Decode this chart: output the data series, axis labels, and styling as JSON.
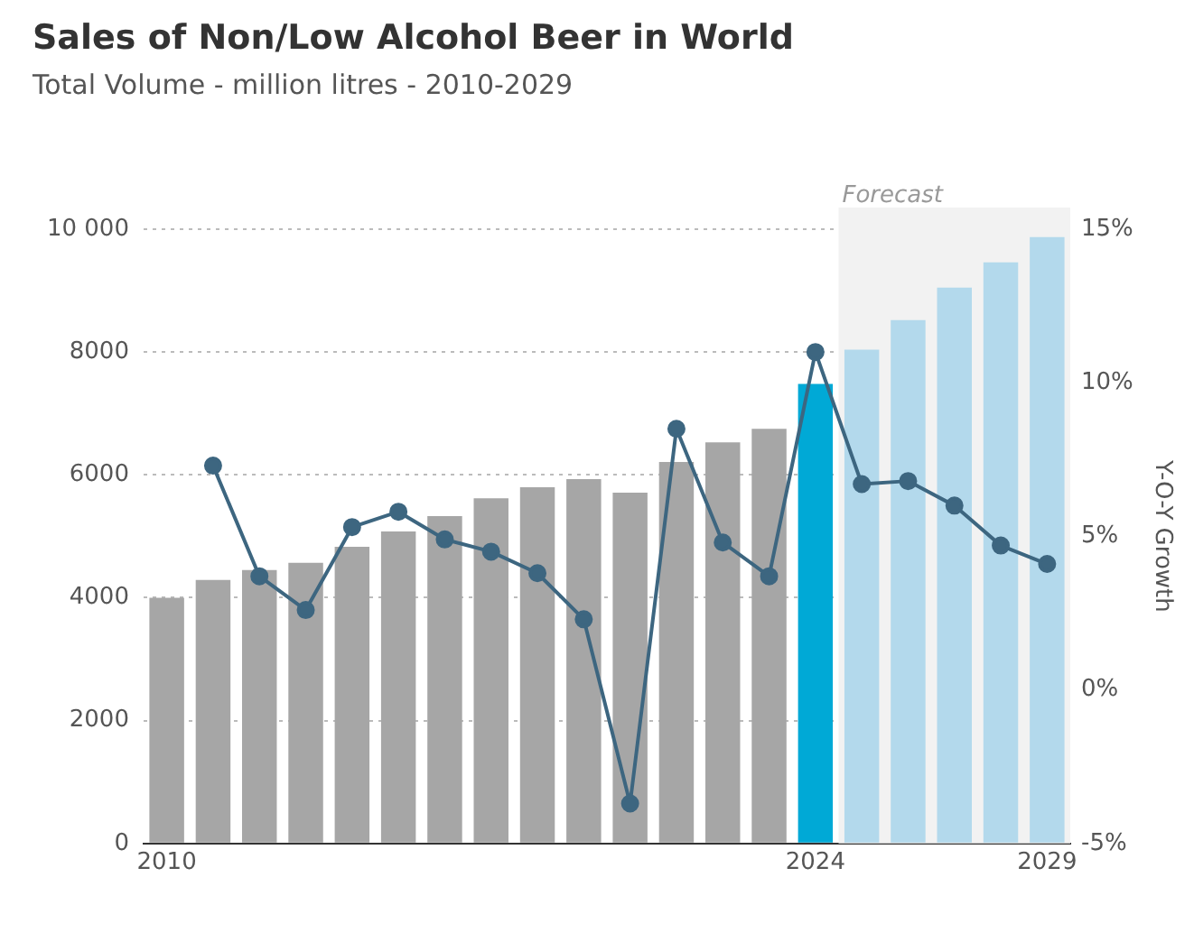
{
  "chart_data": {
    "type": "bar",
    "title": "Sales of Non/Low Alcohol Beer in World",
    "subtitle": "Total Volume - million litres - 2010-2029",
    "y2label": "Y-O-Y Growth",
    "x": [
      2010,
      2011,
      2012,
      2013,
      2014,
      2015,
      2016,
      2017,
      2018,
      2019,
      2020,
      2021,
      2022,
      2023,
      2024,
      2025,
      2026,
      2027,
      2028,
      2029
    ],
    "xlim": [
      2009.5,
      2029.5
    ],
    "xticks": [
      2010,
      2024,
      2029
    ],
    "ylim": [
      0,
      10000
    ],
    "yticks": [
      0,
      2000,
      4000,
      6000,
      8000,
      {
        "value": 10000,
        "label": "10 000"
      }
    ],
    "y2lim": [
      -5,
      15
    ],
    "y2ticks": [
      {
        "value": -5,
        "label": "-5%"
      },
      {
        "value": 0,
        "label": "0%"
      },
      {
        "value": 5,
        "label": "5%"
      },
      {
        "value": 10,
        "label": "10%"
      },
      {
        "value": 15,
        "label": "15%"
      }
    ],
    "series": [
      {
        "colors": [
          "#a6a6a6",
          "#a6a6a6",
          "#a6a6a6",
          "#a6a6a6",
          "#a6a6a6",
          "#a6a6a6",
          "#a6a6a6",
          "#a6a6a6",
          "#a6a6a6",
          "#a6a6a6",
          "#a6a6a6",
          "#a6a6a6",
          "#a6a6a6",
          "#a6a6a6",
          "#00a9d6",
          "#b3d9ec",
          "#b3d9ec",
          "#b3d9ec",
          "#b3d9ec",
          "#b3d9ec"
        ],
        "values": [
          4000,
          4290,
          4450,
          4570,
          4830,
          5080,
          5330,
          5620,
          5800,
          5930,
          5710,
          6210,
          6530,
          6750,
          7480,
          8040,
          8520,
          9050,
          9460,
          9870
        ]
      },
      {
        "type": "line",
        "axis": "y2",
        "color": "#3d6680",
        "marker": "circle",
        "values": [
          null,
          7.3,
          3.7,
          2.6,
          5.3,
          5.8,
          4.9,
          4.5,
          3.8,
          2.3,
          -3.7,
          8.5,
          4.8,
          3.7,
          11.0,
          6.7,
          6.8,
          6.0,
          4.7,
          4.1
        ]
      }
    ],
    "bands": [
      {
        "axis": "x",
        "from": 2024.5,
        "to": 2029.5,
        "label": "Forecast",
        "color": "#f2f2f2"
      }
    ],
    "grid": "y",
    "legend": false
  }
}
